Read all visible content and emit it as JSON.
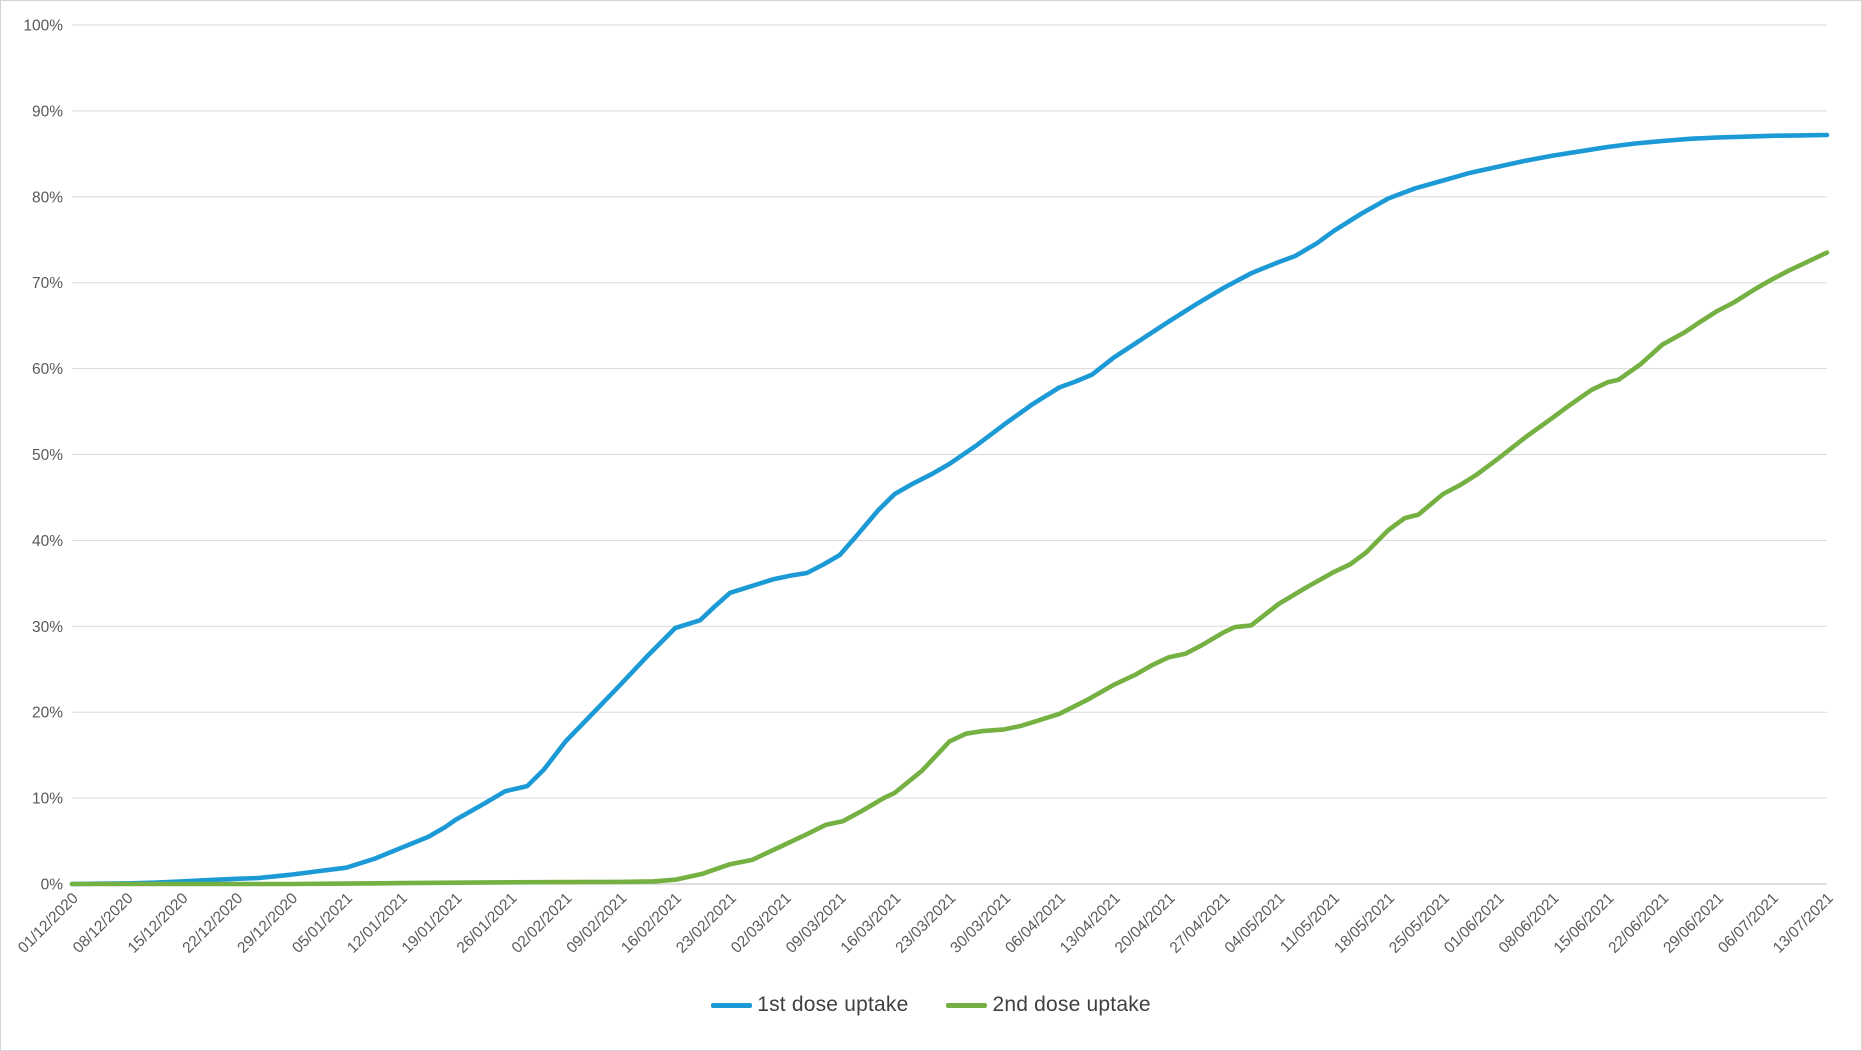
{
  "chart_data": {
    "type": "line",
    "title": "",
    "xlabel": "",
    "ylabel": "",
    "ylim": [
      0,
      100
    ],
    "grid": true,
    "legend_position": "bottom",
    "gridline_color": "#d9d9d9",
    "axis_line_color": "#bfbfbf",
    "tick_label_color": "#595959",
    "y_tick_labels": [
      "0%",
      "10%",
      "20%",
      "30%",
      "40%",
      "50%",
      "60%",
      "70%",
      "80%",
      "90%",
      "100%"
    ],
    "x_tick_labels": [
      "01/12/2020",
      "08/12/2020",
      "15/12/2020",
      "22/12/2020",
      "29/12/2020",
      "05/01/2021",
      "12/01/2021",
      "19/01/2021",
      "26/01/2021",
      "02/02/2021",
      "09/02/2021",
      "16/02/2021",
      "23/02/2021",
      "02/03/2021",
      "09/03/2021",
      "16/03/2021",
      "23/03/2021",
      "30/03/2021",
      "06/04/2021",
      "13/04/2021",
      "20/04/2021",
      "27/04/2021",
      "04/05/2021",
      "11/05/2021",
      "18/05/2021",
      "25/05/2021",
      "01/06/2021",
      "08/06/2021",
      "15/06/2021",
      "22/06/2021",
      "29/06/2021",
      "06/07/2021",
      "13/07/2021"
    ],
    "series": [
      {
        "name": "1st dose uptake",
        "color": "#1c9ad6",
        "points": [
          [
            0,
            0
          ],
          [
            0.5,
            0.03
          ],
          [
            1,
            0.07
          ],
          [
            1.5,
            0.15
          ],
          [
            2,
            0.3
          ],
          [
            2.5,
            0.45
          ],
          [
            3,
            0.6
          ],
          [
            3.4,
            0.7
          ],
          [
            3.8,
            0.95
          ],
          [
            4,
            1.1
          ],
          [
            4.5,
            1.5
          ],
          [
            5,
            1.9
          ],
          [
            5.5,
            2.9
          ],
          [
            6,
            4.2
          ],
          [
            6.5,
            5.5
          ],
          [
            6.8,
            6.6
          ],
          [
            7,
            7.5
          ],
          [
            7.5,
            9.3
          ],
          [
            7.9,
            10.8
          ],
          [
            8.3,
            11.4
          ],
          [
            8.6,
            13.3
          ],
          [
            9,
            16.6
          ],
          [
            9.5,
            19.9
          ],
          [
            10,
            23.2
          ],
          [
            10.5,
            26.6
          ],
          [
            11,
            29.8
          ],
          [
            11.2,
            30.2
          ],
          [
            11.45,
            30.7
          ],
          [
            11.7,
            32.2
          ],
          [
            12,
            33.9
          ],
          [
            12.4,
            34.7
          ],
          [
            12.8,
            35.5
          ],
          [
            13.1,
            35.9
          ],
          [
            13.4,
            36.2
          ],
          [
            13.7,
            37.2
          ],
          [
            14,
            38.3
          ],
          [
            14.3,
            40.5
          ],
          [
            14.7,
            43.5
          ],
          [
            15,
            45.4
          ],
          [
            15.3,
            46.5
          ],
          [
            15.7,
            47.8
          ],
          [
            16,
            48.9
          ],
          [
            16.5,
            51.1
          ],
          [
            17,
            53.5
          ],
          [
            17.5,
            55.8
          ],
          [
            18,
            57.8
          ],
          [
            18.3,
            58.5
          ],
          [
            18.6,
            59.3
          ],
          [
            19,
            61.3
          ],
          [
            19.5,
            63.4
          ],
          [
            20,
            65.5
          ],
          [
            20.5,
            67.5
          ],
          [
            21,
            69.4
          ],
          [
            21.5,
            71.1
          ],
          [
            22,
            72.4
          ],
          [
            22.3,
            73.1
          ],
          [
            22.7,
            74.6
          ],
          [
            23,
            76
          ],
          [
            23.5,
            78
          ],
          [
            24,
            79.8
          ],
          [
            24.5,
            81
          ],
          [
            25,
            81.9
          ],
          [
            25.5,
            82.8
          ],
          [
            26,
            83.5
          ],
          [
            26.5,
            84.2
          ],
          [
            27,
            84.8
          ],
          [
            27.5,
            85.3
          ],
          [
            28,
            85.8
          ],
          [
            28.5,
            86.2
          ],
          [
            29,
            86.5
          ],
          [
            29.5,
            86.75
          ],
          [
            30,
            86.9
          ],
          [
            30.5,
            87
          ],
          [
            31,
            87.1
          ],
          [
            31.5,
            87.15
          ],
          [
            32,
            87.2
          ]
        ]
      },
      {
        "name": "2nd dose uptake",
        "color": "#75b042",
        "points": [
          [
            0,
            0
          ],
          [
            4,
            0
          ],
          [
            5,
            0.05
          ],
          [
            6,
            0.1
          ],
          [
            7,
            0.15
          ],
          [
            8,
            0.2
          ],
          [
            9,
            0.22
          ],
          [
            10,
            0.25
          ],
          [
            10.6,
            0.3
          ],
          [
            11,
            0.5
          ],
          [
            11.5,
            1.2
          ],
          [
            12,
            2.3
          ],
          [
            12.4,
            2.8
          ],
          [
            13,
            4.6
          ],
          [
            13.4,
            5.8
          ],
          [
            13.75,
            6.9
          ],
          [
            14.05,
            7.3
          ],
          [
            14.4,
            8.5
          ],
          [
            14.8,
            10
          ],
          [
            15,
            10.6
          ],
          [
            15.5,
            13.2
          ],
          [
            16,
            16.6
          ],
          [
            16.3,
            17.5
          ],
          [
            16.6,
            17.8
          ],
          [
            17,
            18
          ],
          [
            17.3,
            18.4
          ],
          [
            17.6,
            19
          ],
          [
            18,
            19.8
          ],
          [
            18.5,
            21.4
          ],
          [
            19,
            23.2
          ],
          [
            19.4,
            24.4
          ],
          [
            19.7,
            25.5
          ],
          [
            20,
            26.4
          ],
          [
            20.3,
            26.8
          ],
          [
            20.6,
            27.8
          ],
          [
            21,
            29.3
          ],
          [
            21.2,
            29.9
          ],
          [
            21.5,
            30.1
          ],
          [
            22,
            32.6
          ],
          [
            22.5,
            34.5
          ],
          [
            23,
            36.3
          ],
          [
            23.3,
            37.2
          ],
          [
            23.6,
            38.6
          ],
          [
            24,
            41.2
          ],
          [
            24.3,
            42.6
          ],
          [
            24.55,
            43
          ],
          [
            25,
            45.4
          ],
          [
            25.3,
            46.4
          ],
          [
            25.6,
            47.6
          ],
          [
            26,
            49.5
          ],
          [
            26.5,
            52
          ],
          [
            27,
            54.3
          ],
          [
            27.3,
            55.7
          ],
          [
            27.7,
            57.5
          ],
          [
            28,
            58.4
          ],
          [
            28.2,
            58.7
          ],
          [
            28.6,
            60.5
          ],
          [
            29,
            62.8
          ],
          [
            29.4,
            64.2
          ],
          [
            29.7,
            65.5
          ],
          [
            30,
            66.7
          ],
          [
            30.3,
            67.7
          ],
          [
            30.7,
            69.3
          ],
          [
            31,
            70.4
          ],
          [
            31.3,
            71.4
          ],
          [
            31.6,
            72.3
          ],
          [
            32,
            73.5
          ]
        ]
      }
    ]
  }
}
